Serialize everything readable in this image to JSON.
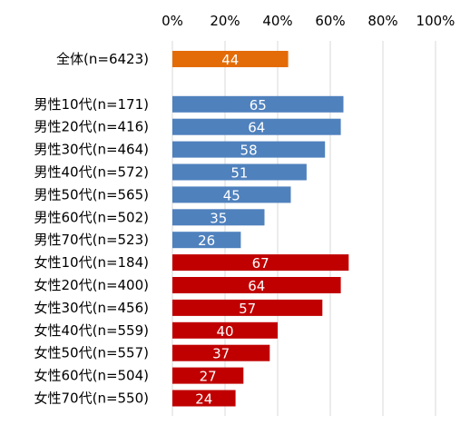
{
  "chart_data": {
    "type": "bar",
    "orientation": "horizontal",
    "title": "",
    "xlabel": "",
    "ylabel": "",
    "xlim": [
      0,
      100
    ],
    "x_ticks": [
      "0%",
      "20%",
      "40%",
      "60%",
      "80%",
      "100%"
    ],
    "x_tick_values": [
      0,
      20,
      40,
      60,
      80,
      100
    ],
    "grid": true,
    "categories": [
      "全体(n=6423)",
      "",
      "男性10代(n=171)",
      "男性20代(n=416)",
      "男性30代(n=464)",
      "男性40代(n=572)",
      "男性50代(n=565)",
      "男性60代(n=502)",
      "男性70代(n=523)",
      "女性10代(n=184)",
      "女性20代(n=400)",
      "女性30代(n=456)",
      "女性40代(n=559)",
      "女性50代(n=557)",
      "女性60代(n=504)",
      "女性70代(n=550)"
    ],
    "values": [
      44,
      null,
      65,
      64,
      58,
      51,
      45,
      35,
      26,
      67,
      64,
      57,
      40,
      37,
      27,
      24
    ],
    "labels": [
      "44",
      "",
      "65",
      "64",
      "58",
      "51",
      "45",
      "35",
      "26",
      "67",
      "64",
      "57",
      "40",
      "37",
      "27",
      "24"
    ],
    "colors": [
      "#e36c09",
      "",
      "#4f81bd",
      "#4f81bd",
      "#4f81bd",
      "#4f81bd",
      "#4f81bd",
      "#4f81bd",
      "#4f81bd",
      "#c00000",
      "#c00000",
      "#c00000",
      "#c00000",
      "#c00000",
      "#c00000",
      "#c00000"
    ]
  }
}
